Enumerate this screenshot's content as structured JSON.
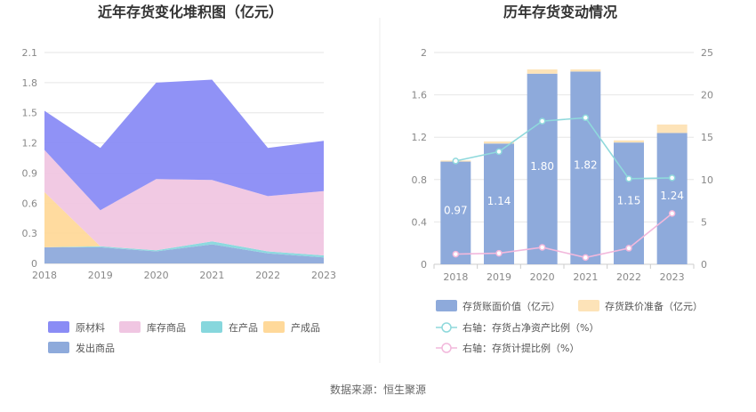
{
  "source_note": "数据来源：恒生聚源",
  "chart_data": [
    {
      "type": "area",
      "stacked": true,
      "title": "近年存货变化堆积图（亿元）",
      "categories": [
        "2018",
        "2019",
        "2020",
        "2021",
        "2022",
        "2023"
      ],
      "y_ticks": [
        "0",
        "0.3",
        "0.6",
        "0.9",
        "1.2",
        "1.5",
        "1.8",
        "2.1"
      ],
      "ylim": [
        0,
        2.1
      ],
      "grid": true,
      "legend_position": "bottom-left",
      "series": [
        {
          "name": "发出商品",
          "color": "#8eaadb",
          "values": [
            0.16,
            0.16,
            0.12,
            0.19,
            0.1,
            0.06
          ]
        },
        {
          "name": "在产品",
          "color": "#87d7dd",
          "values": [
            0.0,
            0.01,
            0.01,
            0.03,
            0.02,
            0.02
          ]
        },
        {
          "name": "产成品",
          "color": "#ffd99a",
          "values": [
            0.55,
            0.0,
            0.0,
            0.0,
            0.0,
            0.0
          ]
        },
        {
          "name": "库存商品",
          "color": "#f0c6e2",
          "values": [
            0.42,
            0.36,
            0.71,
            0.61,
            0.55,
            0.64
          ]
        },
        {
          "name": "原材料",
          "color": "#8a8cf5",
          "values": [
            0.39,
            0.62,
            0.96,
            1.0,
            0.48,
            0.5
          ]
        }
      ],
      "legend_order": [
        "原材料",
        "库存商品",
        "在产品",
        "产成品",
        "发出商品"
      ]
    },
    {
      "type": "bar",
      "stacked": true,
      "title": "历年存货变动情况",
      "categories": [
        "2018",
        "2019",
        "2020",
        "2021",
        "2022",
        "2023"
      ],
      "y_ticks": [
        "0",
        "0.4",
        "0.8",
        "1.2",
        "1.6",
        "2"
      ],
      "ylim": [
        0,
        2
      ],
      "y2_ticks": [
        "0",
        "5",
        "10",
        "15",
        "20",
        "25"
      ],
      "y2lim": [
        0,
        25
      ],
      "legend_position": "bottom",
      "series": [
        {
          "name": "存货账面价值（亿元）",
          "type": "bar",
          "color": "#8eaadb",
          "values": [
            0.97,
            1.14,
            1.8,
            1.82,
            1.15,
            1.24
          ],
          "labels": [
            "0.97",
            "1.14",
            "1.80",
            "1.82",
            "1.15",
            "1.24"
          ]
        },
        {
          "name": "存货跌价准备（亿元）",
          "type": "bar",
          "color": "#fde3b8",
          "values": [
            0.01,
            0.02,
            0.04,
            0.02,
            0.02,
            0.08
          ]
        },
        {
          "name": "右轴：存货占净资产比例（%）",
          "type": "line",
          "axis": "right",
          "color": "#8fd9dc",
          "values": [
            12.2,
            13.3,
            16.9,
            17.3,
            10.1,
            10.2
          ]
        },
        {
          "name": "右轴：存货计提比例（%）",
          "type": "line",
          "axis": "right",
          "color": "#f2b8dc",
          "values": [
            1.2,
            1.3,
            2.0,
            0.8,
            1.9,
            6.0
          ]
        }
      ]
    }
  ]
}
